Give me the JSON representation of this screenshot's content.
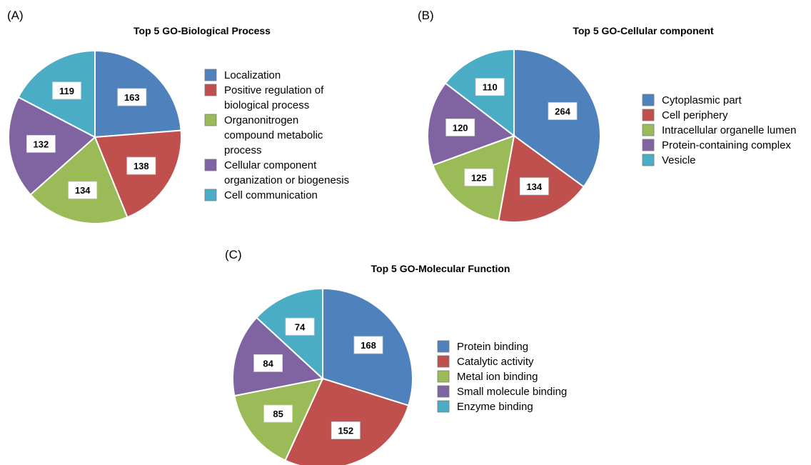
{
  "chart_data": [
    {
      "type": "pie",
      "panel": "(A)",
      "title": "Top 5 GO-Biological Process",
      "categories": [
        "Localization",
        "Positive regulation of biological process",
        "Organonitrogen compound metabolic process",
        "Cellular component organization or biogenesis",
        "Cell communication"
      ],
      "legend_lines": [
        [
          "Localization"
        ],
        [
          "Positive regulation of",
          "biological process"
        ],
        [
          "Organonitrogen",
          "compound metabolic",
          "process"
        ],
        [
          "Cellular component",
          "organization or biogenesis"
        ],
        [
          "Cell communication"
        ]
      ],
      "values": [
        163,
        138,
        134,
        132,
        119
      ],
      "data_labels": [
        "163",
        "138",
        "134",
        "132",
        "119"
      ],
      "colors": [
        "#4F81BD",
        "#C0504D",
        "#9BBB59",
        "#8064A2",
        "#4BACC6"
      ],
      "legend": "right"
    },
    {
      "type": "pie",
      "panel": "(B)",
      "title": "Top 5 GO-Cellular component",
      "categories": [
        "Cytoplasmic part",
        "Cell periphery",
        "Intracellular organelle lumen",
        "Protein-containing complex",
        "Vesicle"
      ],
      "legend_lines": [
        [
          "Cytoplasmic part"
        ],
        [
          "Cell periphery"
        ],
        [
          "Intracellular organelle lumen"
        ],
        [
          "Protein-containing complex"
        ],
        [
          "Vesicle"
        ]
      ],
      "values": [
        264,
        134,
        125,
        120,
        110
      ],
      "data_labels": [
        "264",
        "134",
        "125",
        "120",
        "110"
      ],
      "colors": [
        "#4F81BD",
        "#C0504D",
        "#9BBB59",
        "#8064A2",
        "#4BACC6"
      ],
      "legend": "right"
    },
    {
      "type": "pie",
      "panel": "(C)",
      "title": "Top 5 GO-Molecular Function",
      "categories": [
        "Protein binding",
        "Catalytic activity",
        "Metal ion binding",
        "Small molecule binding",
        "Enzyme binding"
      ],
      "legend_lines": [
        [
          "Protein binding"
        ],
        [
          "Catalytic activity"
        ],
        [
          "Metal ion binding"
        ],
        [
          "Small molecule binding"
        ],
        [
          "Enzyme binding"
        ]
      ],
      "values": [
        168,
        152,
        85,
        84,
        74
      ],
      "data_labels": [
        "168",
        "152",
        "85",
        "84",
        "74"
      ],
      "colors": [
        "#4F81BD",
        "#C0504D",
        "#9BBB59",
        "#8064A2",
        "#4BACC6"
      ],
      "legend": "right"
    }
  ]
}
